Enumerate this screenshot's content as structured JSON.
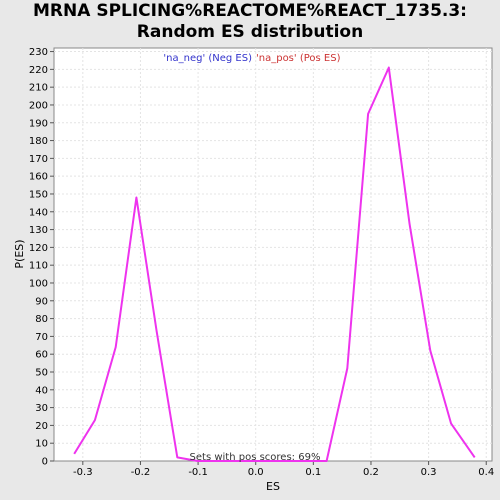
{
  "title_lines": [
    "MRNA SPLICING%REACTOME%REACT_1735.3:",
    "Random ES distribution"
  ],
  "colors": {
    "background": "#e8e8e8",
    "plot_bg": "#ffffff",
    "series": "#ee33ee",
    "legend_neg": "#3333cc",
    "legend_pos": "#cc3333",
    "grid": "#e4e4e4"
  },
  "chart_data": {
    "type": "line",
    "title": "MRNA SPLICING%REACTOME%REACT_1735.3: Random ES distribution",
    "xlabel": "ES",
    "ylabel": "P(ES)",
    "xlim": [
      -0.35,
      0.41
    ],
    "ylim": [
      0,
      232
    ],
    "x_ticks": [
      -0.3,
      -0.2,
      -0.1,
      0.0,
      0.1,
      0.2,
      0.3,
      0.4
    ],
    "x_tick_labels": [
      "-0.3",
      "-0.2",
      "-0.1",
      "0.0",
      "0.1",
      "0.2",
      "0.3",
      "0.4"
    ],
    "y_ticks": [
      0,
      10,
      20,
      30,
      40,
      50,
      60,
      70,
      80,
      90,
      100,
      110,
      120,
      130,
      140,
      150,
      160,
      170,
      180,
      190,
      200,
      210,
      220,
      230
    ],
    "grid": true,
    "legend": [
      {
        "label": "'na_neg' (Neg ES)",
        "color": "#3333cc"
      },
      {
        "label": "'na_pos' (Pos ES)",
        "color": "#cc3333"
      }
    ],
    "legend_placement": "top-center",
    "annotation": "Sets with pos scores: 69%",
    "series": [
      {
        "color": "#ee33ee",
        "x": [
          -0.315,
          -0.279,
          -0.243,
          -0.207,
          -0.172,
          -0.136,
          -0.101,
          -0.065,
          -0.029,
          0.006,
          0.042,
          0.078,
          0.123,
          0.159,
          0.195,
          0.231,
          0.267,
          0.303,
          0.339,
          0.38
        ],
        "y": [
          4,
          23,
          64,
          148,
          73,
          2,
          0,
          0,
          0,
          0,
          0,
          0,
          0,
          52,
          195,
          221,
          133,
          62,
          21,
          2
        ]
      }
    ]
  }
}
